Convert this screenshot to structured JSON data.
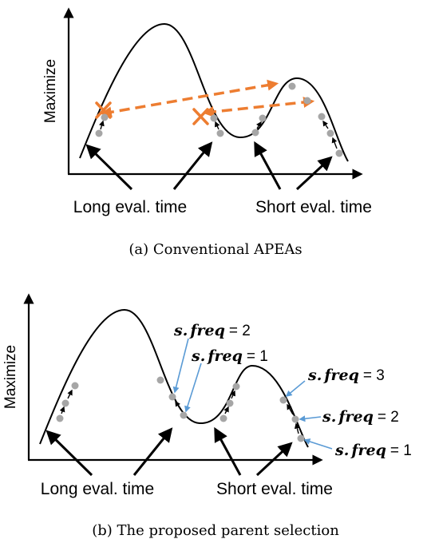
{
  "panel_a": {
    "ylabel": "Maximize",
    "long_label": "Long eval. time",
    "short_label": "Short eval. time",
    "caption": "(a) Conventional APEAs"
  },
  "panel_b": {
    "ylabel": "Maximize",
    "long_label": "Long eval. time",
    "short_label": "Short eval. time",
    "caption": "(b) The proposed parent selection",
    "freq_labels": [
      {
        "prefix": "s.",
        "var": "freq",
        "value": "= 2"
      },
      {
        "prefix": "s.",
        "var": "freq",
        "value": "= 1"
      },
      {
        "prefix": "s.",
        "var": "freq",
        "value": "= 3"
      },
      {
        "prefix": "s.",
        "var": "freq",
        "value": "= 2"
      },
      {
        "prefix": "s.",
        "var": "freq",
        "value": "= 1"
      }
    ]
  },
  "colors": {
    "curve": "#000000",
    "point": "#a6a6a6",
    "cross": "#ed7d31",
    "migration_arrow": "#ed7d31",
    "annotation_line": "#5b9bd5"
  }
}
